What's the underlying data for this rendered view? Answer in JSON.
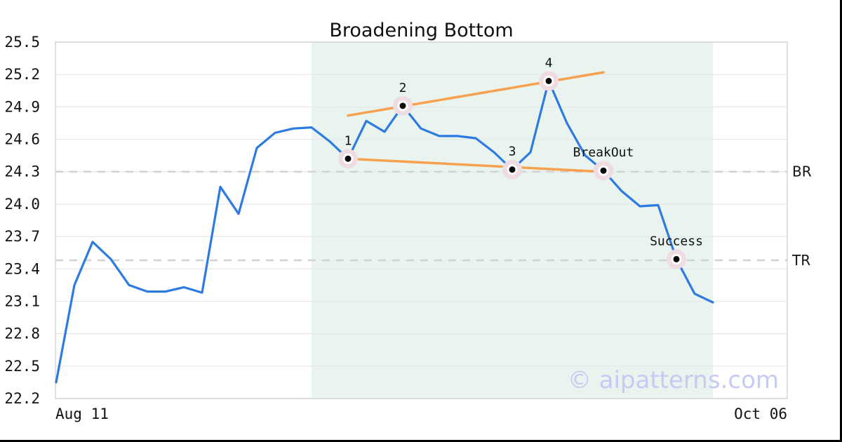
{
  "title": "Broadening Bottom",
  "watermark": "© aipatterns.com",
  "colors": {
    "price_line": "#2d7be0",
    "trendline": "#f7a14e",
    "pattern_zone": "#e9f4ef",
    "grid": "#e7e7e7",
    "spine": "#d6d6d6",
    "dashed_level": "#d2d2d2",
    "marker_halo": "#efdce2",
    "marker_ring": "#ffffff",
    "marker_dot": "#0b0b0b",
    "text": "#111111",
    "watermark_color": "#c7caf2"
  },
  "chart_data": {
    "type": "line",
    "title": "Broadening Bottom",
    "x_axis": {
      "start_label": "Aug 11",
      "end_label": "Oct 06"
    },
    "y_axis": {
      "min": 22.2,
      "max": 25.5,
      "tick_step": 0.3,
      "ticks": [
        "25.5",
        "25.2",
        "24.9",
        "24.6",
        "24.3",
        "24.0",
        "23.7",
        "23.4",
        "23.1",
        "22.8",
        "22.5",
        "22.2"
      ]
    },
    "series": {
      "name": "price",
      "values": [
        22.35,
        23.25,
        23.65,
        23.49,
        23.25,
        23.19,
        23.19,
        23.23,
        23.18,
        24.16,
        23.91,
        24.52,
        24.66,
        24.7,
        24.71,
        24.58,
        24.42,
        24.77,
        24.67,
        24.91,
        24.7,
        24.63,
        24.63,
        24.61,
        24.48,
        24.32,
        24.48,
        25.14,
        24.75,
        24.45,
        24.31,
        24.12,
        23.98,
        23.99,
        23.49,
        23.17,
        23.09
      ]
    },
    "key_points": [
      {
        "label": "1",
        "index": 16,
        "value": 24.42
      },
      {
        "label": "2",
        "index": 19,
        "value": 24.91
      },
      {
        "label": "3",
        "index": 25,
        "value": 24.32
      },
      {
        "label": "4",
        "index": 27,
        "value": 25.14
      },
      {
        "label": "BreakOut",
        "index": 30,
        "value": 24.31
      },
      {
        "label": "Success",
        "index": 34,
        "value": 23.49
      }
    ],
    "trendlines": [
      {
        "name": "upper",
        "from": {
          "index": 16,
          "value": 24.82
        },
        "to": {
          "index": 30,
          "value": 25.22
        }
      },
      {
        "name": "lower",
        "from": {
          "index": 16,
          "value": 24.42
        },
        "to": {
          "index": 29.9,
          "value": 24.3
        }
      }
    ],
    "levels": [
      {
        "label": "BR",
        "value": 24.3
      },
      {
        "label": "TR",
        "value": 23.48
      }
    ],
    "pattern_zone": {
      "start_index": 14,
      "end_index": 36
    },
    "legend": "none",
    "grid": "horizontal"
  }
}
